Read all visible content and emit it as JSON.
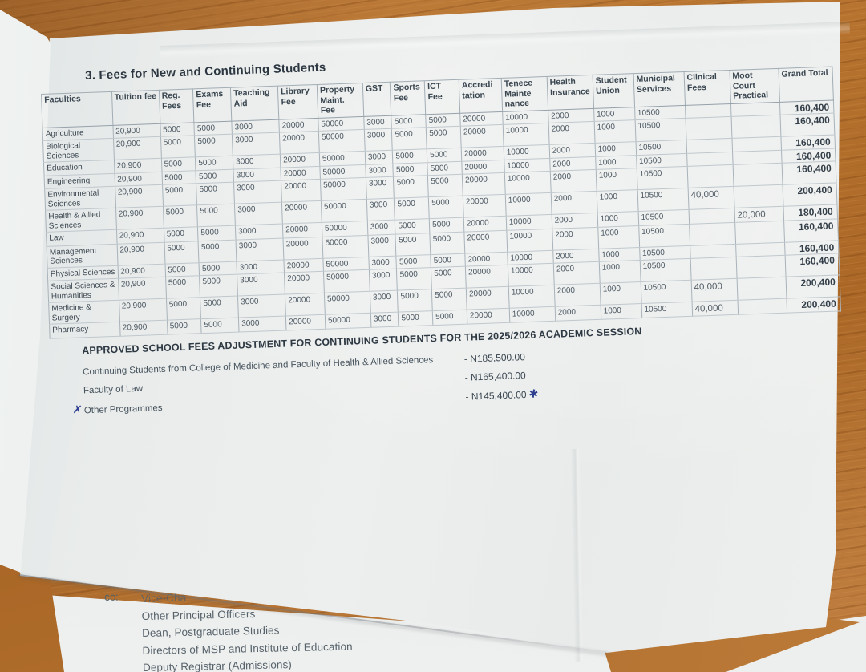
{
  "document": {
    "title": "3. Fees for New and Continuing Students",
    "table": {
      "headers": [
        "Faculties",
        "Tuition fee",
        "Reg. Fees",
        "Exams Fee",
        "Teaching Aid",
        "Library Fee",
        "Property Maint. Fee",
        "GST",
        "Sports Fee",
        "ICT Fee",
        "Accredi tation",
        "Tenece Mainte nance",
        "Health Insurance",
        "Student Union",
        "Municipal Services",
        "Clinical Fees",
        "Moot Court Practical",
        "Grand Total"
      ],
      "rows": [
        [
          "Agriculture",
          "20,900",
          "5000",
          "5000",
          "3000",
          "20000",
          "50000",
          "3000",
          "5000",
          "5000",
          "20000",
          "10000",
          "2000",
          "1000",
          "10500",
          "",
          "",
          "160,400"
        ],
        [
          "Biological Sciences",
          "20,900",
          "5000",
          "5000",
          "3000",
          "20000",
          "50000",
          "3000",
          "5000",
          "5000",
          "20000",
          "10000",
          "2000",
          "1000",
          "10500",
          "",
          "",
          "160,400"
        ],
        [
          "Education",
          "20,900",
          "5000",
          "5000",
          "3000",
          "20000",
          "50000",
          "3000",
          "5000",
          "5000",
          "20000",
          "10000",
          "2000",
          "1000",
          "10500",
          "",
          "",
          "160,400"
        ],
        [
          "Engineering",
          "20,900",
          "5000",
          "5000",
          "3000",
          "20000",
          "50000",
          "3000",
          "5000",
          "5000",
          "20000",
          "10000",
          "2000",
          "1000",
          "10500",
          "",
          "",
          "160,400"
        ],
        [
          "Environmental Sciences",
          "20,900",
          "5000",
          "5000",
          "3000",
          "20000",
          "50000",
          "3000",
          "5000",
          "5000",
          "20000",
          "10000",
          "2000",
          "1000",
          "10500",
          "",
          "",
          "160,400"
        ],
        [
          "Health & Allied Sciences",
          "20,900",
          "5000",
          "5000",
          "3000",
          "20000",
          "50000",
          "3000",
          "5000",
          "5000",
          "20000",
          "10000",
          "2000",
          "1000",
          "10500",
          "40,000",
          "",
          "200,400"
        ],
        [
          "Law",
          "20,900",
          "5000",
          "5000",
          "3000",
          "20000",
          "50000",
          "3000",
          "5000",
          "5000",
          "20000",
          "10000",
          "2000",
          "1000",
          "10500",
          "",
          "20,000",
          "180,400"
        ],
        [
          "Management Sciences",
          "20,900",
          "5000",
          "5000",
          "3000",
          "20000",
          "50000",
          "3000",
          "5000",
          "5000",
          "20000",
          "10000",
          "2000",
          "1000",
          "10500",
          "",
          "",
          "160,400"
        ],
        [
          "Physical Sciences",
          "20,900",
          "5000",
          "5000",
          "3000",
          "20000",
          "50000",
          "3000",
          "5000",
          "5000",
          "20000",
          "10000",
          "2000",
          "1000",
          "10500",
          "",
          "",
          "160,400"
        ],
        [
          "Social Sciences & Humanities",
          "20,900",
          "5000",
          "5000",
          "3000",
          "20000",
          "50000",
          "3000",
          "5000",
          "5000",
          "20000",
          "10000",
          "2000",
          "1000",
          "10500",
          "",
          "",
          "160,400"
        ],
        [
          "Medicine & Surgery",
          "20,900",
          "5000",
          "5000",
          "3000",
          "20000",
          "50000",
          "3000",
          "5000",
          "5000",
          "20000",
          "10000",
          "2000",
          "1000",
          "10500",
          "40,000",
          "",
          "200,400"
        ],
        [
          "Pharmacy",
          "20,900",
          "5000",
          "5000",
          "3000",
          "20000",
          "50000",
          "3000",
          "5000",
          "5000",
          "20000",
          "10000",
          "2000",
          "1000",
          "10500",
          "40,000",
          "",
          "200,400"
        ]
      ]
    },
    "adjustment": {
      "title": "APPROVED SCHOOL FEES ADJUSTMENT FOR CONTINUING STUDENTS FOR THE 2025/2026 ACADEMIC SESSION",
      "items": [
        {
          "label": "Continuing Students from College of Medicine and Faculty of Health & Allied Sciences",
          "amount": "- N185,500.00",
          "pre_mark": "",
          "post_mark": ""
        },
        {
          "label": "Faculty of Law",
          "amount": "- N165,400.00",
          "pre_mark": "",
          "post_mark": ""
        },
        {
          "label": "Other Programmes",
          "amount": "- N145,400.00",
          "pre_mark": "✗",
          "post_mark": "✱"
        }
      ],
      "ink_color": "#2f3f8f"
    },
    "cc": {
      "label": "cc:",
      "recipients": [
        "Vice-Cha",
        "Other Principal Officers",
        "Dean, Postgraduate Studies",
        "Directors of MSP and Institute of Education",
        "Deputy Registrar (Admissions)"
      ]
    }
  }
}
